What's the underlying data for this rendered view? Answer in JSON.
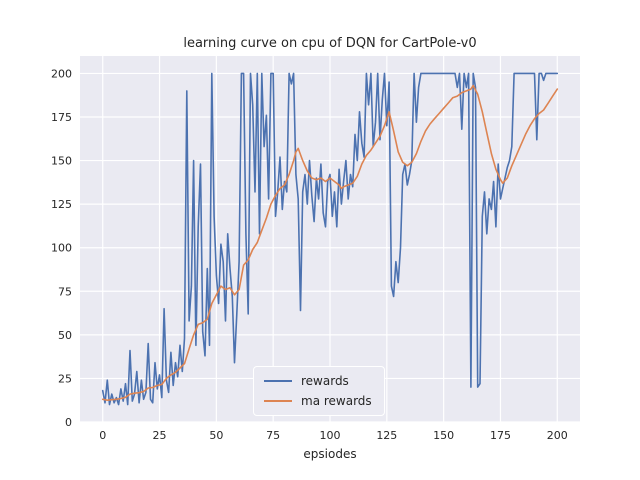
{
  "title": "learning curve on cpu of DQN for CartPole-v0",
  "xlabel": "epsiodes",
  "legend": {
    "items": [
      {
        "label": "rewards"
      },
      {
        "label": "ma rewards"
      }
    ]
  },
  "chart_data": {
    "type": "line",
    "title": "learning curve on cpu of DQN for CartPole-v0",
    "xlabel": "epsiodes",
    "ylabel": "",
    "xlim": [
      -10,
      210
    ],
    "ylim": [
      0,
      210
    ],
    "xticks": [
      0,
      25,
      50,
      75,
      100,
      125,
      150,
      175,
      200
    ],
    "yticks": [
      0,
      25,
      50,
      75,
      100,
      125,
      150,
      175,
      200
    ],
    "grid": true,
    "legend_position": "lower center",
    "style": {
      "axes_bg": "#eaeaf2",
      "grid_color": "#ffffff",
      "text_color": "#262626"
    },
    "series": [
      {
        "name": "rewards",
        "color": "#4c72b0",
        "points": [
          [
            0,
            18
          ],
          [
            1,
            11
          ],
          [
            2,
            24
          ],
          [
            3,
            10
          ],
          [
            4,
            16
          ],
          [
            5,
            11
          ],
          [
            6,
            14
          ],
          [
            7,
            10
          ],
          [
            8,
            19
          ],
          [
            9,
            12
          ],
          [
            10,
            22
          ],
          [
            11,
            10
          ],
          [
            12,
            41
          ],
          [
            13,
            12
          ],
          [
            14,
            16
          ],
          [
            15,
            29
          ],
          [
            16,
            11
          ],
          [
            17,
            24
          ],
          [
            18,
            13
          ],
          [
            19,
            17
          ],
          [
            20,
            45
          ],
          [
            21,
            13
          ],
          [
            22,
            11
          ],
          [
            23,
            34
          ],
          [
            24,
            19
          ],
          [
            25,
            27
          ],
          [
            26,
            14
          ],
          [
            27,
            65
          ],
          [
            28,
            24
          ],
          [
            29,
            17
          ],
          [
            30,
            40
          ],
          [
            31,
            21
          ],
          [
            32,
            34
          ],
          [
            33,
            26
          ],
          [
            34,
            44
          ],
          [
            35,
            29
          ],
          [
            36,
            48
          ],
          [
            37,
            190
          ],
          [
            38,
            58
          ],
          [
            39,
            78
          ],
          [
            40,
            150
          ],
          [
            41,
            44
          ],
          [
            42,
            112
          ],
          [
            43,
            148
          ],
          [
            44,
            52
          ],
          [
            45,
            38
          ],
          [
            46,
            88
          ],
          [
            47,
            44
          ],
          [
            48,
            200
          ],
          [
            49,
            118
          ],
          [
            50,
            84
          ],
          [
            51,
            68
          ],
          [
            52,
            102
          ],
          [
            53,
            92
          ],
          [
            54,
            58
          ],
          [
            55,
            108
          ],
          [
            56,
            88
          ],
          [
            57,
            72
          ],
          [
            58,
            34
          ],
          [
            59,
            62
          ],
          [
            60,
            92
          ],
          [
            61,
            200
          ],
          [
            62,
            200
          ],
          [
            63,
            108
          ],
          [
            64,
            62
          ],
          [
            65,
            200
          ],
          [
            66,
            182
          ],
          [
            67,
            132
          ],
          [
            68,
            200
          ],
          [
            69,
            108
          ],
          [
            70,
            200
          ],
          [
            71,
            158
          ],
          [
            72,
            176
          ],
          [
            73,
            128
          ],
          [
            74,
            200
          ],
          [
            75,
            200
          ],
          [
            76,
            118
          ],
          [
            77,
            132
          ],
          [
            78,
            152
          ],
          [
            79,
            122
          ],
          [
            80,
            138
          ],
          [
            81,
            132
          ],
          [
            82,
            200
          ],
          [
            83,
            194
          ],
          [
            84,
            200
          ],
          [
            85,
            142
          ],
          [
            86,
            128
          ],
          [
            87,
            64
          ],
          [
            88,
            132
          ],
          [
            89,
            142
          ],
          [
            90,
            125
          ],
          [
            91,
            150
          ],
          [
            92,
            130
          ],
          [
            93,
            115
          ],
          [
            94,
            140
          ],
          [
            95,
            128
          ],
          [
            96,
            148
          ],
          [
            97,
            120
          ],
          [
            98,
            112
          ],
          [
            99,
            138
          ],
          [
            100,
            142
          ],
          [
            101,
            118
          ],
          [
            102,
            132
          ],
          [
            103,
            112
          ],
          [
            104,
            145
          ],
          [
            105,
            125
          ],
          [
            106,
            138
          ],
          [
            107,
            150
          ],
          [
            108,
            128
          ],
          [
            109,
            142
          ],
          [
            110,
            135
          ],
          [
            111,
            165
          ],
          [
            112,
            150
          ],
          [
            113,
            178
          ],
          [
            114,
            160
          ],
          [
            115,
            152
          ],
          [
            116,
            200
          ],
          [
            117,
            182
          ],
          [
            118,
            200
          ],
          [
            119,
            158
          ],
          [
            120,
            172
          ],
          [
            121,
            200
          ],
          [
            122,
            162
          ],
          [
            123,
            185
          ],
          [
            124,
            200
          ],
          [
            125,
            170
          ],
          [
            126,
            195
          ],
          [
            127,
            78
          ],
          [
            128,
            72
          ],
          [
            129,
            92
          ],
          [
            130,
            80
          ],
          [
            131,
            100
          ],
          [
            132,
            142
          ],
          [
            133,
            148
          ],
          [
            134,
            136
          ],
          [
            135,
            142
          ],
          [
            136,
            150
          ],
          [
            137,
            200
          ],
          [
            138,
            172
          ],
          [
            139,
            192
          ],
          [
            140,
            200
          ],
          [
            141,
            200
          ],
          [
            142,
            200
          ],
          [
            143,
            200
          ],
          [
            144,
            200
          ],
          [
            145,
            200
          ],
          [
            146,
            200
          ],
          [
            147,
            200
          ],
          [
            148,
            200
          ],
          [
            149,
            200
          ],
          [
            150,
            200
          ],
          [
            151,
            200
          ],
          [
            152,
            200
          ],
          [
            153,
            200
          ],
          [
            154,
            200
          ],
          [
            155,
            200
          ],
          [
            156,
            192
          ],
          [
            157,
            200
          ],
          [
            158,
            168
          ],
          [
            159,
            200
          ],
          [
            160,
            192
          ],
          [
            161,
            200
          ],
          [
            162,
            20
          ],
          [
            163,
            200
          ],
          [
            164,
            192
          ],
          [
            165,
            20
          ],
          [
            166,
            22
          ],
          [
            167,
            118
          ],
          [
            168,
            132
          ],
          [
            169,
            108
          ],
          [
            170,
            128
          ],
          [
            171,
            122
          ],
          [
            172,
            138
          ],
          [
            173,
            112
          ],
          [
            174,
            148
          ],
          [
            175,
            128
          ],
          [
            176,
            134
          ],
          [
            177,
            140
          ],
          [
            178,
            146
          ],
          [
            179,
            150
          ],
          [
            180,
            158
          ],
          [
            181,
            200
          ],
          [
            182,
            200
          ],
          [
            183,
            200
          ],
          [
            184,
            200
          ],
          [
            185,
            200
          ],
          [
            186,
            200
          ],
          [
            187,
            200
          ],
          [
            188,
            200
          ],
          [
            189,
            200
          ],
          [
            190,
            200
          ],
          [
            191,
            162
          ],
          [
            192,
            200
          ],
          [
            193,
            200
          ],
          [
            194,
            196
          ],
          [
            195,
            200
          ],
          [
            196,
            200
          ],
          [
            197,
            200
          ],
          [
            198,
            200
          ],
          [
            199,
            200
          ],
          [
            200,
            200
          ]
        ]
      },
      {
        "name": "ma rewards",
        "color": "#dd8452",
        "points": [
          [
            0,
            13
          ],
          [
            2,
            12.5
          ],
          [
            4,
            12.8
          ],
          [
            6,
            13
          ],
          [
            8,
            13.5
          ],
          [
            10,
            14.2
          ],
          [
            12,
            16
          ],
          [
            14,
            16.5
          ],
          [
            16,
            16.8
          ],
          [
            18,
            17.5
          ],
          [
            20,
            19.5
          ],
          [
            22,
            19.8
          ],
          [
            24,
            21
          ],
          [
            26,
            21.5
          ],
          [
            28,
            25
          ],
          [
            30,
            27
          ],
          [
            32,
            28.5
          ],
          [
            34,
            31
          ],
          [
            36,
            33.5
          ],
          [
            38,
            42
          ],
          [
            40,
            50
          ],
          [
            42,
            56
          ],
          [
            44,
            57
          ],
          [
            46,
            59
          ],
          [
            48,
            68
          ],
          [
            50,
            73
          ],
          [
            52,
            78
          ],
          [
            54,
            76
          ],
          [
            56,
            77
          ],
          [
            58,
            73
          ],
          [
            60,
            76
          ],
          [
            62,
            90
          ],
          [
            64,
            93
          ],
          [
            66,
            99
          ],
          [
            68,
            103
          ],
          [
            70,
            110
          ],
          [
            72,
            117
          ],
          [
            74,
            125
          ],
          [
            76,
            130
          ],
          [
            78,
            134
          ],
          [
            80,
            136
          ],
          [
            82,
            142
          ],
          [
            84,
            150
          ],
          [
            85,
            155
          ],
          [
            86,
            157
          ],
          [
            88,
            150
          ],
          [
            90,
            144
          ],
          [
            92,
            140
          ],
          [
            94,
            139
          ],
          [
            96,
            140
          ],
          [
            98,
            138
          ],
          [
            100,
            140
          ],
          [
            102,
            138
          ],
          [
            104,
            136
          ],
          [
            105,
            134
          ],
          [
            106,
            135
          ],
          [
            108,
            136
          ],
          [
            110,
            137
          ],
          [
            112,
            141
          ],
          [
            114,
            148
          ],
          [
            116,
            153
          ],
          [
            118,
            156
          ],
          [
            120,
            160
          ],
          [
            122,
            164
          ],
          [
            124,
            170
          ],
          [
            126,
            178
          ],
          [
            128,
            167
          ],
          [
            130,
            155
          ],
          [
            132,
            149
          ],
          [
            134,
            147
          ],
          [
            136,
            149
          ],
          [
            138,
            154
          ],
          [
            140,
            161
          ],
          [
            142,
            167
          ],
          [
            144,
            171
          ],
          [
            146,
            174
          ],
          [
            148,
            177
          ],
          [
            150,
            180
          ],
          [
            152,
            183
          ],
          [
            154,
            186
          ],
          [
            156,
            187
          ],
          [
            158,
            189
          ],
          [
            160,
            190
          ],
          [
            162,
            191
          ],
          [
            163,
            193
          ],
          [
            165,
            188
          ],
          [
            167,
            178
          ],
          [
            169,
            166
          ],
          [
            171,
            154
          ],
          [
            173,
            145
          ],
          [
            175,
            139
          ],
          [
            176,
            137
          ],
          [
            178,
            140
          ],
          [
            180,
            147
          ],
          [
            182,
            153
          ],
          [
            184,
            159
          ],
          [
            186,
            165
          ],
          [
            188,
            170
          ],
          [
            190,
            174
          ],
          [
            192,
            177
          ],
          [
            194,
            179
          ],
          [
            196,
            183
          ],
          [
            198,
            187
          ],
          [
            200,
            191
          ]
        ]
      }
    ]
  }
}
